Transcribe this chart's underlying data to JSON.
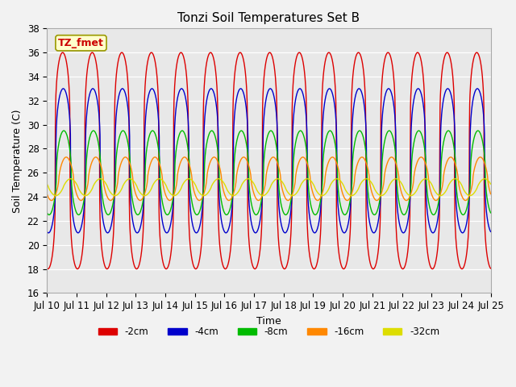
{
  "title": "Tonzi Soil Temperatures Set B",
  "xlabel": "Time",
  "ylabel": "Soil Temperature (C)",
  "ylim": [
    16,
    38
  ],
  "yticks": [
    16,
    18,
    20,
    22,
    24,
    26,
    28,
    30,
    32,
    34,
    36,
    38
  ],
  "series_names": [
    "-2cm",
    "-4cm",
    "-8cm",
    "-16cm",
    "-32cm"
  ],
  "series_colors": [
    "#dd0000",
    "#0000cc",
    "#00bb00",
    "#ff8800",
    "#dddd00"
  ],
  "series_lw": [
    1.0,
    1.0,
    1.0,
    1.0,
    1.0
  ],
  "label_text": "TZ_fmet",
  "label_fg": "#cc0000",
  "label_bg": "#ffffcc",
  "label_border": "#999900",
  "plot_bg": "#e8e8e8",
  "n_days": 15,
  "start_day": 10,
  "samples_per_day": 96
}
